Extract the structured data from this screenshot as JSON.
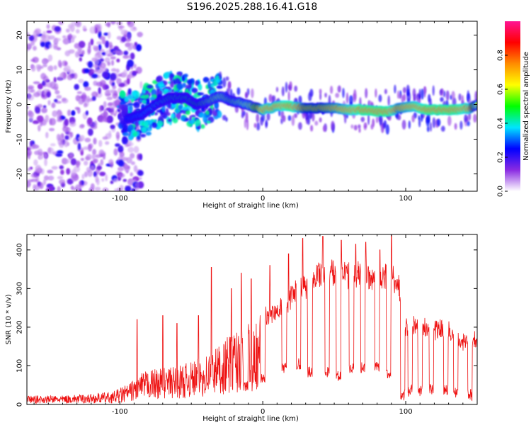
{
  "title": "S196.2025.288.16.41.G18",
  "chart_data": [
    {
      "type": "heatmap",
      "title": "S196.2025.288.16.41.G18",
      "xlabel": "Height of straight line (km)",
      "ylabel": "Frequency (Hz)",
      "xlim": [
        -165,
        150
      ],
      "ylim": [
        -25,
        24
      ],
      "xticks": [
        -100,
        0,
        100
      ],
      "yticks": [
        -20,
        -10,
        0,
        10,
        20
      ],
      "colorbar": {
        "label": "Normalized spectral amplitude",
        "range": [
          0,
          1
        ],
        "ticks": [
          0.0,
          0.2,
          0.4,
          0.6,
          0.8
        ],
        "tick_labels": [
          "0.0",
          "0.2",
          "0.4",
          "0.6",
          "0.8"
        ],
        "colors": [
          "#ffffff",
          "#8a2be2",
          "#0000ff",
          "#00e5ff",
          "#00ff00",
          "#ffff00",
          "#ff8c00",
          "#ff0000",
          "#ff1493"
        ]
      },
      "ridge": {
        "description": "frequency of the main spectral ridge vs height",
        "x": [
          -95,
          -85,
          -75,
          -65,
          -55,
          -45,
          -38,
          -30,
          -22,
          -15,
          -8,
          0,
          10,
          20,
          30,
          40,
          50,
          60,
          70,
          80,
          88,
          95,
          105,
          115,
          125,
          135,
          145,
          150
        ],
        "y": [
          -4,
          -3,
          0,
          2,
          2,
          0,
          1,
          2.5,
          1,
          0.5,
          -0.5,
          -1.5,
          -0.5,
          -0.5,
          -1,
          -1,
          -1,
          -1.5,
          -1.5,
          -2,
          -2,
          -1,
          -0.5,
          -1.5,
          -1.5,
          -1.5,
          -1,
          0
        ],
        "amplitude": [
          0.3,
          0.35,
          0.4,
          0.45,
          0.45,
          0.5,
          0.55,
          0.6,
          0.55,
          0.6,
          0.65,
          0.9,
          0.9,
          0.95,
          0.8,
          0.8,
          0.85,
          0.9,
          0.95,
          0.95,
          0.95,
          0.85,
          0.9,
          0.95,
          0.95,
          0.95,
          0.9,
          0.6
        ]
      },
      "noise_region": {
        "x_range": [
          -165,
          -95
        ],
        "y_range": [
          -25,
          24
        ],
        "amplitude": "low (0.05-0.3), scattered"
      }
    },
    {
      "type": "line",
      "xlabel": "Height of straight line (km)",
      "ylabel": "SNR (10 * v/v)",
      "xlim": [
        -165,
        150
      ],
      "ylim": [
        0,
        440
      ],
      "xticks": [
        -100,
        0,
        100
      ],
      "yticks": [
        0,
        100,
        200,
        300,
        400
      ],
      "series_color": "#ee1111",
      "envelope": {
        "x": [
          -165,
          -140,
          -120,
          -105,
          -95,
          -85,
          -80,
          -70,
          -60,
          -50,
          -40,
          -30,
          -20,
          -10,
          0,
          10,
          20,
          30,
          40,
          50,
          60,
          70,
          80,
          90,
          95,
          100,
          110,
          120,
          130,
          140,
          150
        ],
        "y": [
          20,
          20,
          25,
          30,
          50,
          80,
          90,
          95,
          100,
          110,
          130,
          160,
          190,
          220,
          250,
          270,
          310,
          340,
          375,
          370,
          365,
          360,
          355,
          355,
          340,
          220,
          220,
          215,
          205,
          180,
          180
        ]
      },
      "dropouts": {
        "x": [
          -12,
          0,
          15,
          25,
          33,
          45,
          53,
          62,
          70,
          80,
          88,
          98,
          103,
          110,
          118,
          128,
          135,
          145
        ],
        "y": [
          30,
          50,
          80,
          90,
          70,
          70,
          60,
          80,
          80,
          80,
          60,
          10,
          20,
          20,
          25,
          20,
          15,
          10
        ]
      },
      "spikes": {
        "x": [
          -88,
          -70,
          -60,
          -45,
          -36,
          -22,
          -15,
          -8,
          5,
          18,
          28,
          42,
          55,
          65,
          72,
          82,
          90
        ],
        "y": [
          220,
          230,
          210,
          230,
          355,
          300,
          340,
          325,
          360,
          390,
          430,
          435,
          425,
          415,
          420,
          400,
          440
        ]
      }
    }
  ]
}
